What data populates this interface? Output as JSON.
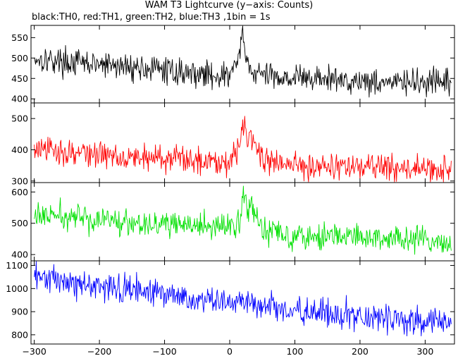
{
  "header": {
    "title": "WAM T3 Lightcurve (y−axis: Counts)",
    "subtitle": "black:TH0, red:TH1, green:TH2, blue:TH3 ,1bin = 1s"
  },
  "chart_data": {
    "type": "line",
    "title": "WAM T3 Lightcurve (y−axis: Counts)",
    "subtitle": "black:TH0, red:TH1, green:TH2, blue:TH3 ,1bin = 1s",
    "ylabel": "Counts",
    "xlim": [
      -305,
      345
    ],
    "x_ticks": [
      -300,
      -200,
      -100,
      0,
      100,
      200,
      300
    ],
    "bin_seconds": 1,
    "panels": [
      {
        "series": "TH0",
        "color": "#000000",
        "ylim": [
          390,
          580
        ],
        "y_ticks": [
          400,
          450,
          500,
          550
        ],
        "x": [
          -300,
          -250,
          -200,
          -150,
          -100,
          -50,
          0,
          15,
          20,
          30,
          50,
          100,
          150,
          200,
          250,
          300,
          340
        ],
        "y": [
          500,
          490,
          483,
          478,
          470,
          462,
          455,
          510,
          545,
          470,
          458,
          452,
          448,
          444,
          441,
          438,
          438
        ]
      },
      {
        "series": "TH1",
        "color": "#ff0000",
        "ylim": [
          295,
          550
        ],
        "y_ticks": [
          300,
          400,
          500
        ],
        "x": [
          -300,
          -250,
          -200,
          -150,
          -100,
          -50,
          0,
          15,
          20,
          28,
          35,
          45,
          60,
          100,
          150,
          200,
          250,
          300,
          340
        ],
        "y": [
          400,
          393,
          385,
          378,
          373,
          368,
          365,
          400,
          505,
          440,
          455,
          385,
          360,
          352,
          348,
          345,
          342,
          338,
          335
        ]
      },
      {
        "series": "TH2",
        "color": "#00e000",
        "ylim": [
          380,
          630
        ],
        "y_ticks": [
          400,
          500,
          600
        ],
        "x": [
          -300,
          -250,
          -200,
          -150,
          -100,
          -50,
          0,
          15,
          20,
          28,
          35,
          45,
          60,
          100,
          150,
          200,
          250,
          300,
          340
        ],
        "y": [
          525,
          520,
          512,
          505,
          497,
          490,
          485,
          510,
          600,
          540,
          555,
          500,
          475,
          465,
          460,
          455,
          450,
          445,
          440
        ]
      },
      {
        "series": "TH3",
        "color": "#0000ff",
        "ylim": [
          760,
          1120
        ],
        "y_ticks": [
          800,
          900,
          1000,
          1100
        ],
        "x": [
          -300,
          -250,
          -200,
          -150,
          -100,
          -50,
          0,
          50,
          100,
          150,
          200,
          250,
          300,
          340
        ],
        "y": [
          1045,
          1030,
          1010,
          995,
          975,
          955,
          940,
          925,
          905,
          890,
          880,
          870,
          858,
          845
        ]
      }
    ]
  }
}
